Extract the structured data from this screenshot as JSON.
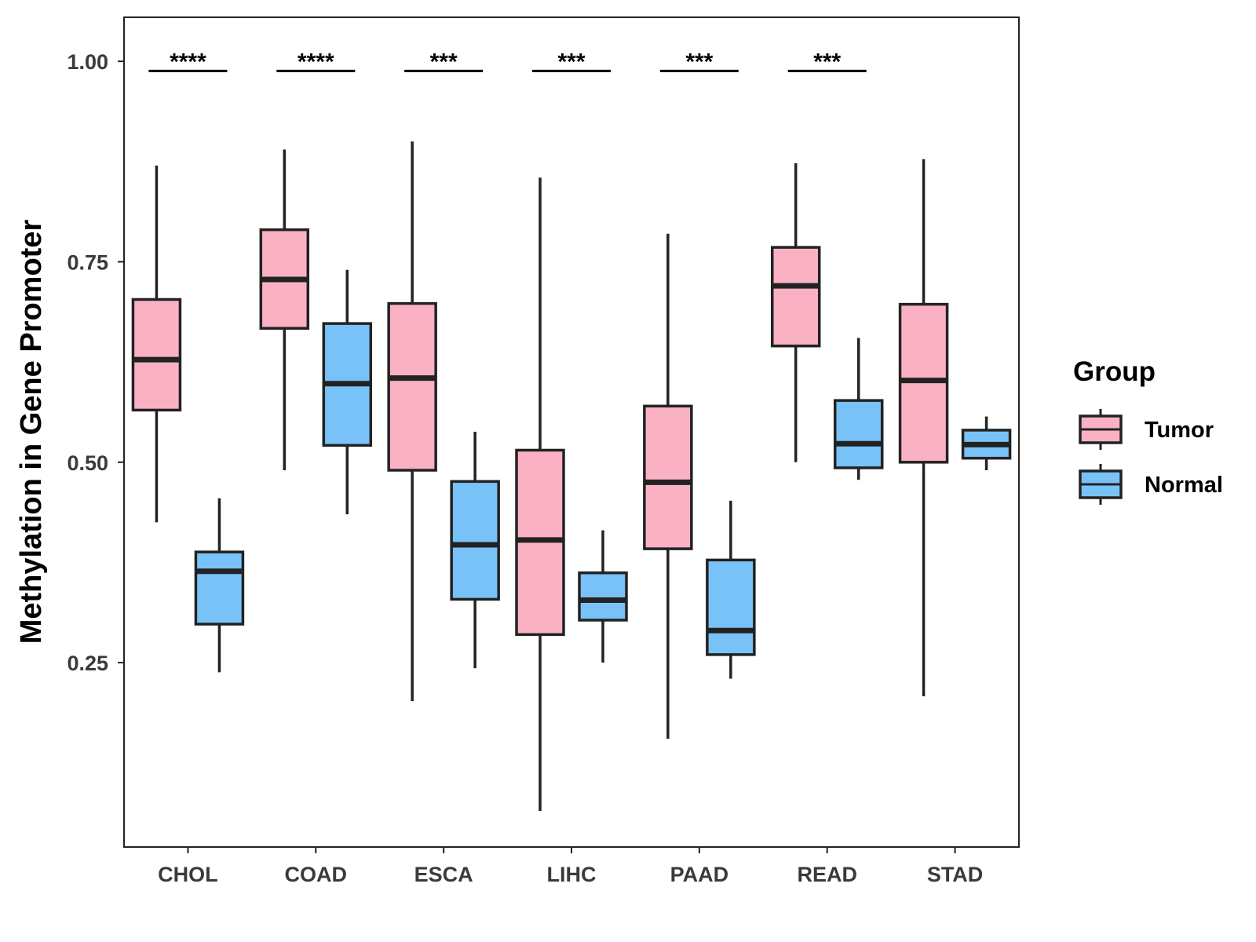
{
  "chart_data": {
    "type": "boxplot",
    "title": "",
    "xlabel": "",
    "ylabel": "Methylation in Gene Promoter",
    "ylim": [
      0.02,
      1.055
    ],
    "yticks": [
      0.25,
      0.5,
      0.75,
      1.0
    ],
    "ytick_labels": [
      "0.25",
      "0.50",
      "0.75",
      "1.00"
    ],
    "grid": false,
    "categories": [
      "CHOL",
      "COAD",
      "ESCA",
      "LIHC",
      "PAAD",
      "READ",
      "STAD"
    ],
    "legend": {
      "title": "Group",
      "position": "right"
    },
    "series": [
      {
        "name": "Tumor",
        "color": "#FBB1C4",
        "boxes": [
          {
            "min": 0.425,
            "q1": 0.565,
            "median": 0.628,
            "q3": 0.703,
            "max": 0.87
          },
          {
            "min": 0.49,
            "q1": 0.667,
            "median": 0.728,
            "q3": 0.79,
            "max": 0.89
          },
          {
            "min": 0.202,
            "q1": 0.49,
            "median": 0.605,
            "q3": 0.698,
            "max": 0.9
          },
          {
            "min": 0.065,
            "q1": 0.285,
            "median": 0.403,
            "q3": 0.515,
            "max": 0.855
          },
          {
            "min": 0.155,
            "q1": 0.392,
            "median": 0.475,
            "q3": 0.57,
            "max": 0.785
          },
          {
            "min": 0.5,
            "q1": 0.645,
            "median": 0.72,
            "q3": 0.768,
            "max": 0.873
          },
          {
            "min": 0.208,
            "q1": 0.5,
            "median": 0.602,
            "q3": 0.697,
            "max": 0.878
          }
        ]
      },
      {
        "name": "Normal",
        "color": "#78C2F7",
        "boxes": [
          {
            "min": 0.238,
            "q1": 0.298,
            "median": 0.364,
            "q3": 0.388,
            "max": 0.455
          },
          {
            "min": 0.435,
            "q1": 0.521,
            "median": 0.598,
            "q3": 0.673,
            "max": 0.74
          },
          {
            "min": 0.243,
            "q1": 0.329,
            "median": 0.397,
            "q3": 0.476,
            "max": 0.538
          },
          {
            "min": 0.25,
            "q1": 0.303,
            "median": 0.328,
            "q3": 0.362,
            "max": 0.415
          },
          {
            "min": 0.23,
            "q1": 0.26,
            "median": 0.29,
            "q3": 0.378,
            "max": 0.452
          },
          {
            "min": 0.478,
            "q1": 0.493,
            "median": 0.523,
            "q3": 0.577,
            "max": 0.655
          },
          {
            "min": 0.49,
            "q1": 0.505,
            "median": 0.522,
            "q3": 0.54,
            "max": 0.557
          }
        ]
      }
    ],
    "significance": [
      {
        "category": "CHOL",
        "label": "****",
        "y": 0.988
      },
      {
        "category": "COAD",
        "label": "****",
        "y": 0.988
      },
      {
        "category": "ESCA",
        "label": "***",
        "y": 0.988
      },
      {
        "category": "LIHC",
        "label": "***",
        "y": 0.988
      },
      {
        "category": "PAAD",
        "label": "***",
        "y": 0.988
      },
      {
        "category": "READ",
        "label": "***",
        "y": 0.988
      }
    ]
  }
}
